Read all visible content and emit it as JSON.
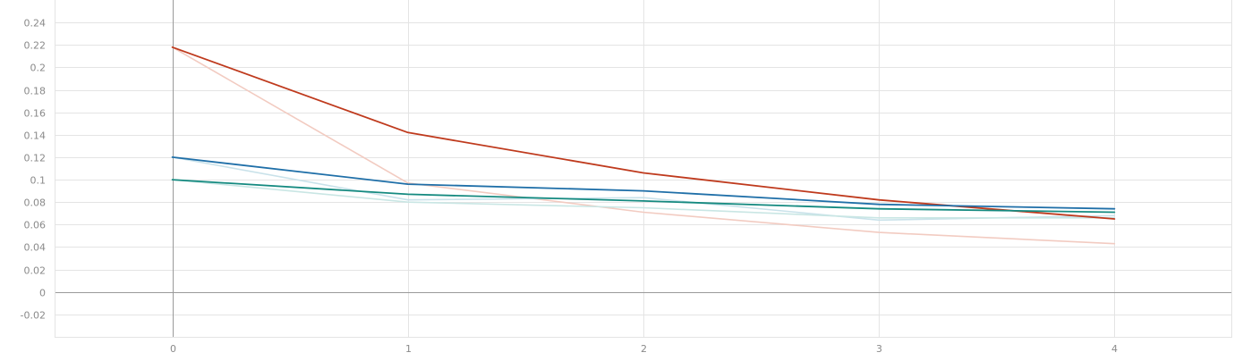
{
  "chart_data": {
    "type": "line",
    "title": "",
    "xlabel": "",
    "ylabel": "",
    "xlim": [
      -0.5,
      4.5
    ],
    "ylim": [
      -0.04,
      0.26
    ],
    "x_ticks": [
      0,
      1,
      2,
      3,
      4
    ],
    "x_tick_labels": [
      "0",
      "1",
      "2",
      "3",
      "4"
    ],
    "y_ticks": [
      -0.02,
      0,
      0.02,
      0.04,
      0.06,
      0.08,
      0.1,
      0.12,
      0.14,
      0.16,
      0.18,
      0.2,
      0.22,
      0.24
    ],
    "y_tick_labels": [
      "-0.02",
      "0",
      "0.02",
      "0.04",
      "0.06",
      "0.08",
      "0.1",
      "0.12",
      "0.14",
      "0.16",
      "0.18",
      "0.2",
      "0.22",
      "0.24"
    ],
    "grid": true,
    "legend": "none",
    "series": [
      {
        "color": "#f2cbc1",
        "x": [
          0,
          1,
          2,
          3,
          4
        ],
        "y": [
          0.218,
          0.097,
          0.071,
          0.053,
          0.043
        ]
      },
      {
        "color": "#c9e2ea",
        "x": [
          0,
          1,
          2,
          3,
          4
        ],
        "y": [
          0.12,
          0.082,
          0.084,
          0.064,
          0.068
        ]
      },
      {
        "color": "#c9e6e4",
        "x": [
          0,
          1,
          2,
          3,
          4
        ],
        "y": [
          0.1,
          0.08,
          0.075,
          0.066,
          0.066
        ]
      },
      {
        "color": "#bf3a1d",
        "x": [
          0,
          1,
          2,
          3,
          4
        ],
        "y": [
          0.218,
          0.142,
          0.106,
          0.082,
          0.065
        ]
      },
      {
        "color": "#1f6fa8",
        "x": [
          0,
          1,
          2,
          3,
          4
        ],
        "y": [
          0.12,
          0.096,
          0.09,
          0.078,
          0.074
        ]
      },
      {
        "color": "#158a80",
        "x": [
          0,
          1,
          2,
          3,
          4
        ],
        "y": [
          0.1,
          0.087,
          0.081,
          0.074,
          0.071
        ]
      }
    ]
  }
}
